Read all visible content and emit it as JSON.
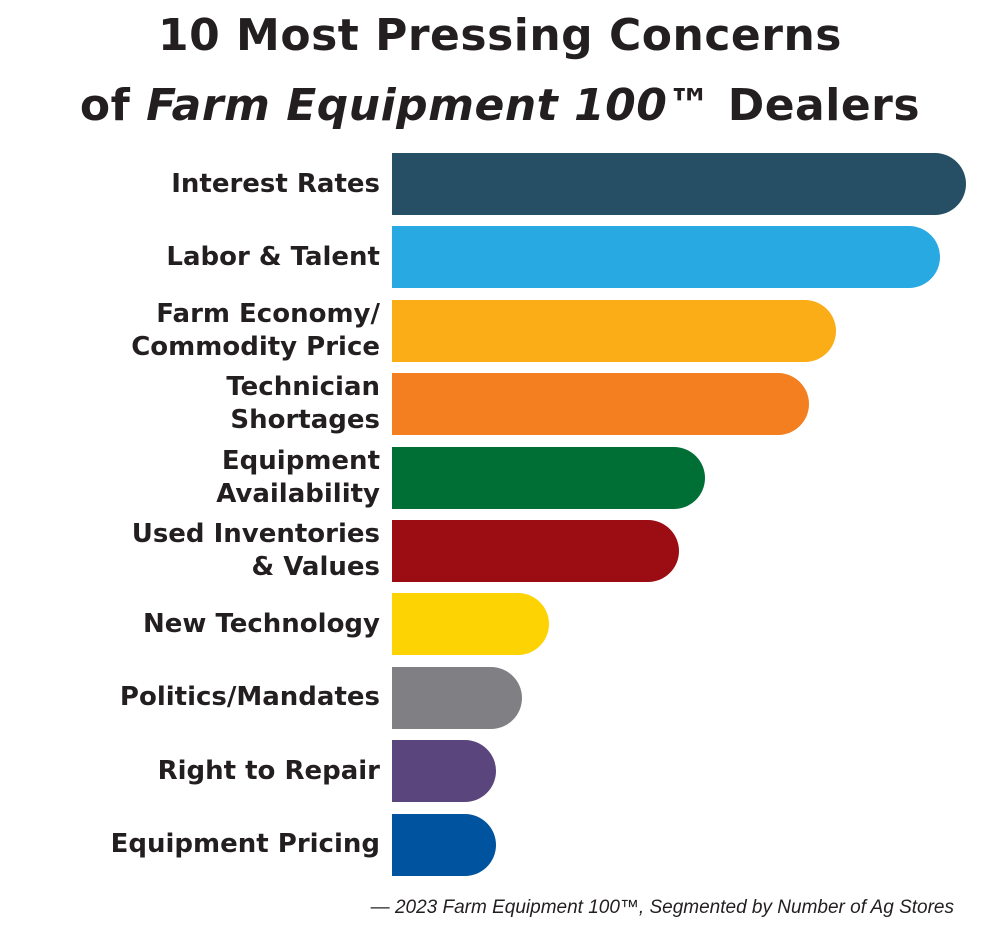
{
  "chart_data": {
    "type": "bar",
    "orientation": "horizontal",
    "title": {
      "line1": "10 Most Pressing Concerns",
      "line2": [
        "of",
        "Farm Equipment 100™",
        "Dealers"
      ]
    },
    "categories": [
      "Interest Rates",
      "Labor & Talent",
      "Farm Economy/\nCommodity Price",
      "Technician\nShortages",
      "Equipment\nAvailability",
      "Used Inventories\n& Values",
      "New Technology",
      "Politics/Mandates",
      "Right to Repair",
      "Equipment Pricing"
    ],
    "values": [
      22,
      21,
      17,
      16,
      12,
      11,
      6,
      5,
      4,
      4
    ],
    "colors": [
      "#264f66",
      "#29a9e1",
      "#fbad18",
      "#f47f20",
      "#006f35",
      "#9b0d12",
      "#fed304",
      "#808084",
      "#5a467c",
      "#00539f"
    ],
    "source": "— 2023 Farm Equipment 100™, Segmented by Number of Ag Stores"
  }
}
